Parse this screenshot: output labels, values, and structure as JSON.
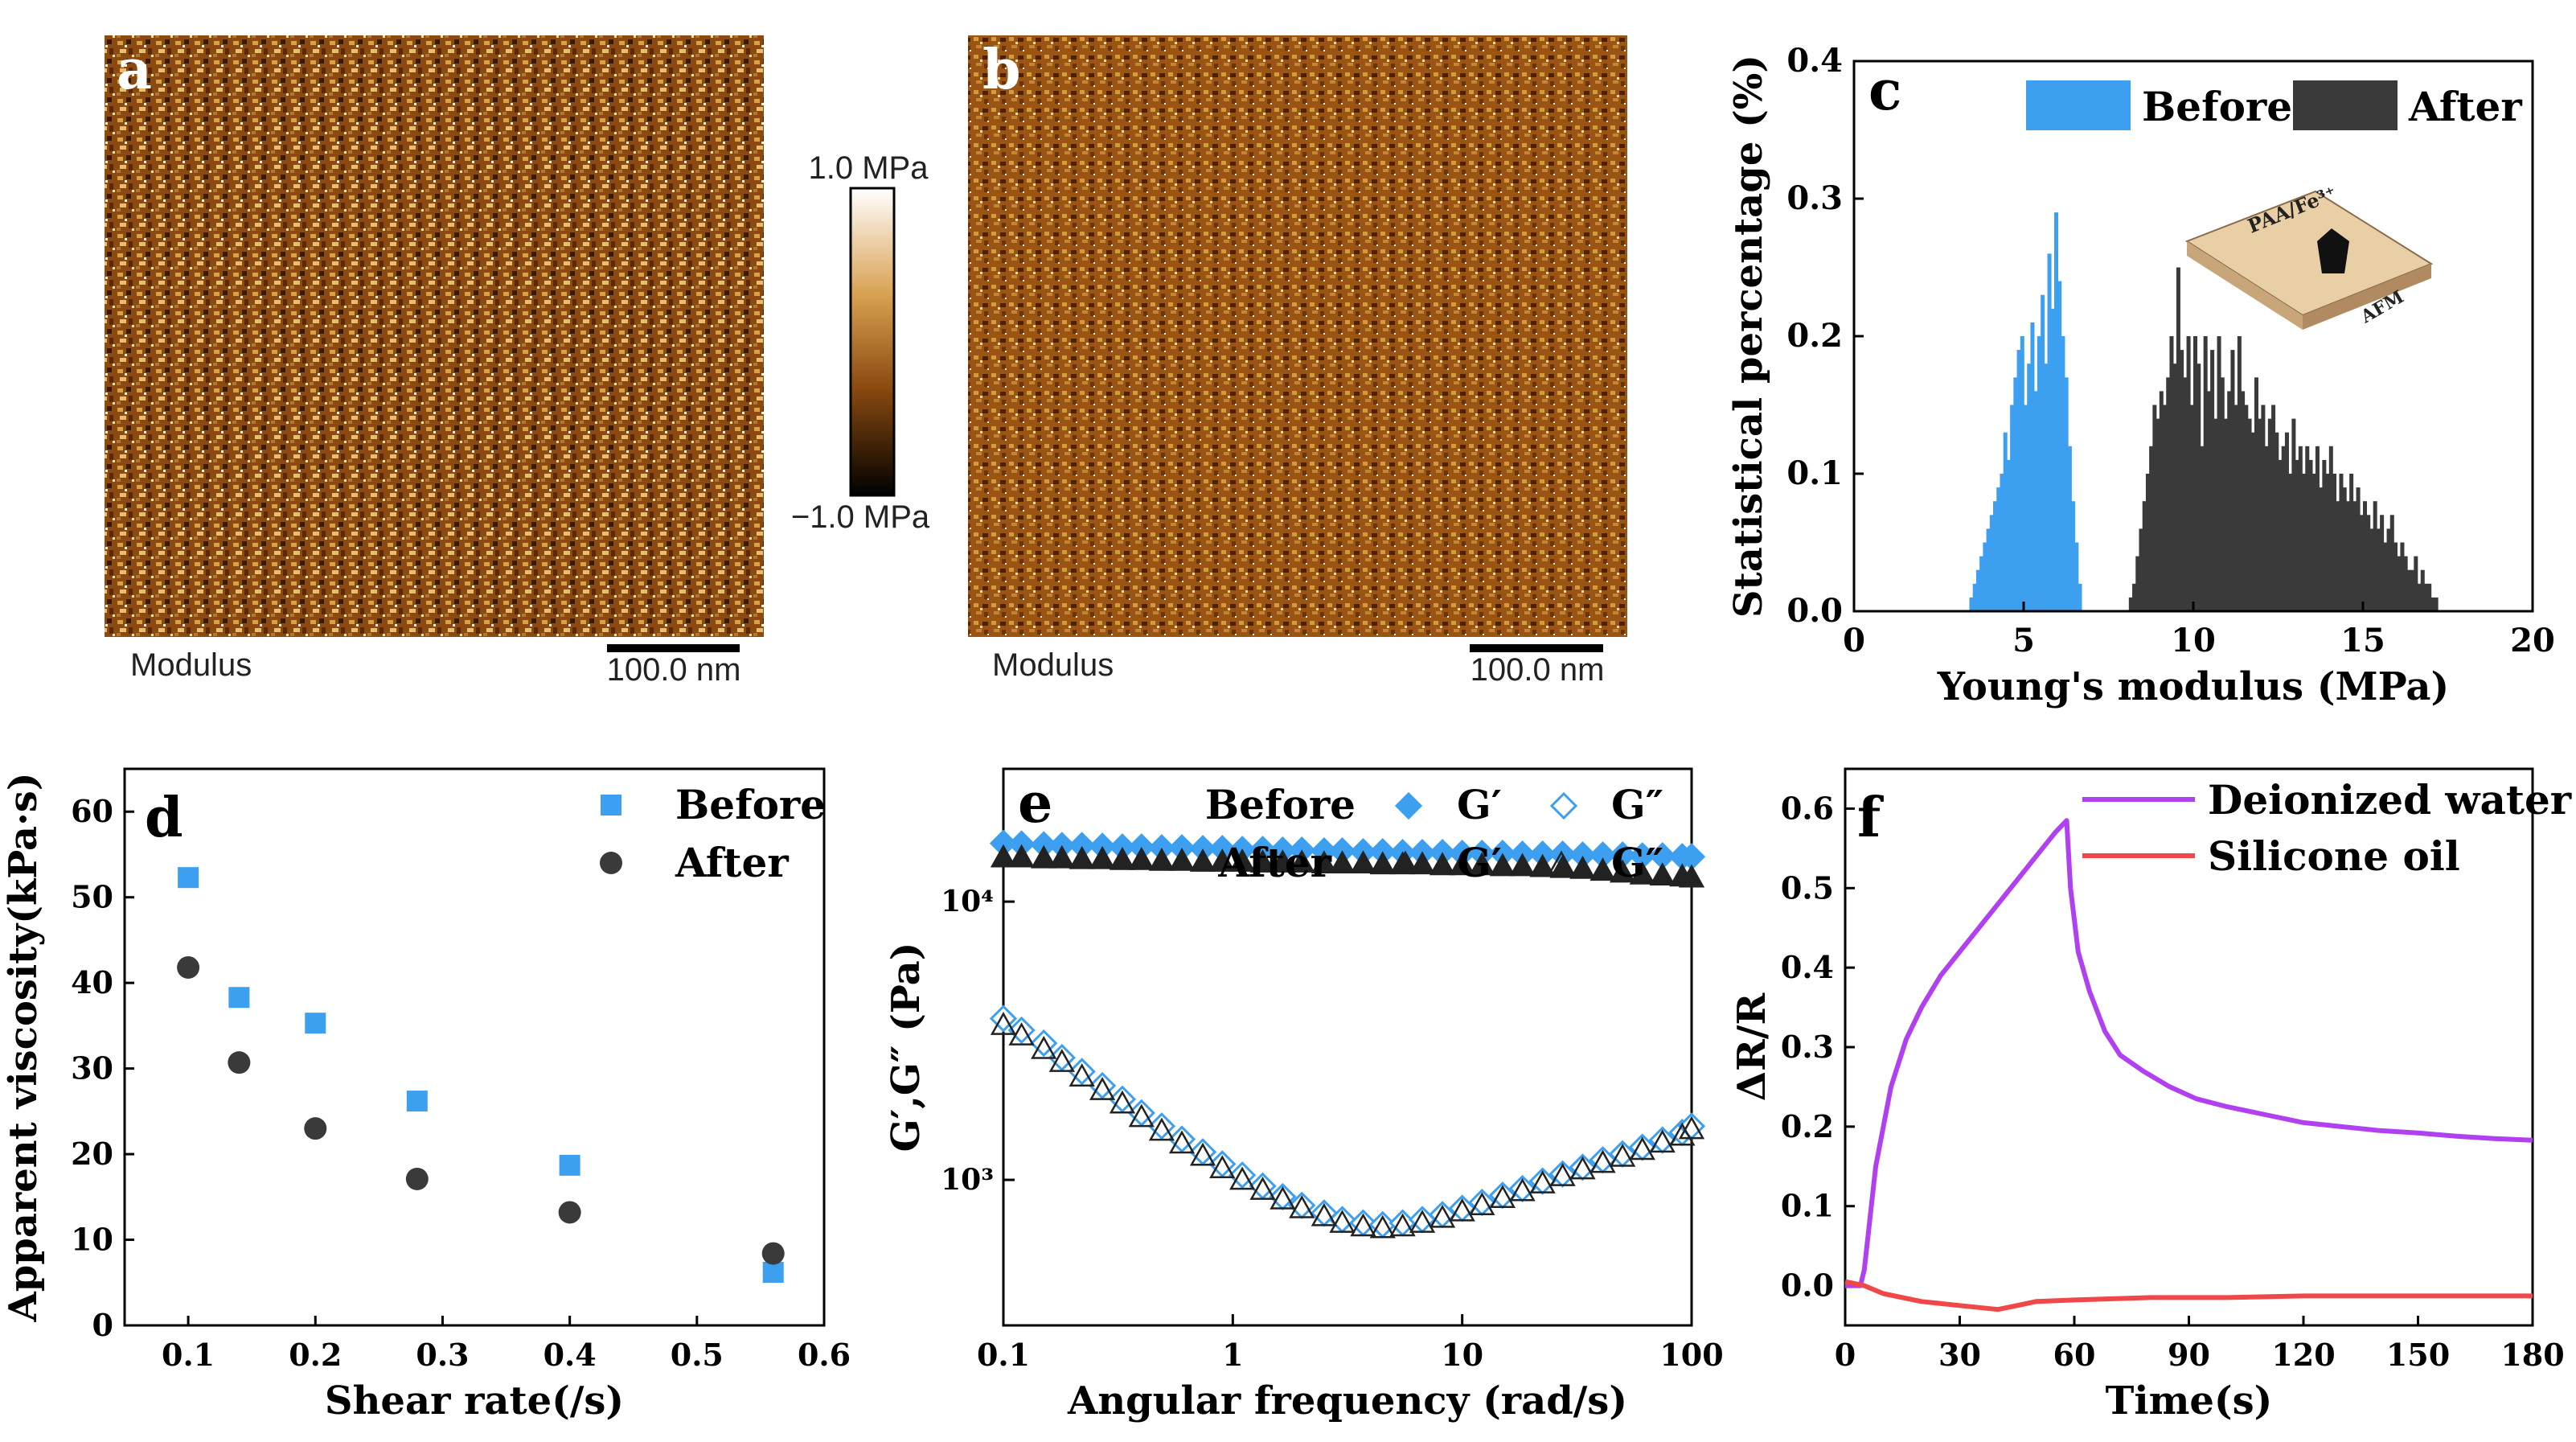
{
  "panels": {
    "a": {
      "letter": "a",
      "caption": "Modulus",
      "scalebar": "100.0 nm"
    },
    "b": {
      "letter": "b",
      "caption": "Modulus",
      "scalebar": "100.0 nm"
    },
    "colorbar": {
      "top_label": "1.0 MPa",
      "bottom_label": "−1.0 MPa"
    }
  },
  "inset": {
    "top_label": "PAA/Fe³⁺",
    "side_label": "AFM"
  },
  "colors": {
    "before": "#3d9ff0",
    "after": "#3a3a3a",
    "water": "#b040f0",
    "oil": "#f04848"
  },
  "chart_data": [
    {
      "id": "c",
      "type": "bar",
      "letter": "c",
      "xlabel": "Young's modulus (MPa)",
      "ylabel": "Statistical percentage (%)",
      "xlim": [
        0,
        20
      ],
      "ylim": [
        0,
        0.4
      ],
      "xticks": [
        "0",
        "5",
        "10",
        "15",
        "20"
      ],
      "yticks": [
        "0.0",
        "0.1",
        "0.2",
        "0.3",
        "0.4"
      ],
      "legend": [
        "Before",
        "After"
      ],
      "series": [
        {
          "name": "Before",
          "bin_start": 3.4,
          "bin_width": 0.1,
          "values": [
            0.01,
            0.02,
            0.03,
            0.04,
            0.05,
            0.06,
            0.07,
            0.08,
            0.09,
            0.1,
            0.13,
            0.11,
            0.15,
            0.17,
            0.19,
            0.2,
            0.15,
            0.18,
            0.21,
            0.16,
            0.2,
            0.23,
            0.18,
            0.26,
            0.22,
            0.29,
            0.24,
            0.2,
            0.17,
            0.12,
            0.08,
            0.05,
            0.02
          ]
        },
        {
          "name": "After",
          "bin_start": 8.1,
          "bin_width": 0.1,
          "values": [
            0.01,
            0.02,
            0.04,
            0.06,
            0.08,
            0.1,
            0.12,
            0.15,
            0.14,
            0.16,
            0.15,
            0.17,
            0.2,
            0.18,
            0.25,
            0.19,
            0.17,
            0.2,
            0.15,
            0.2,
            0.18,
            0.12,
            0.2,
            0.16,
            0.19,
            0.14,
            0.2,
            0.17,
            0.14,
            0.16,
            0.19,
            0.15,
            0.2,
            0.16,
            0.15,
            0.14,
            0.13,
            0.17,
            0.14,
            0.15,
            0.12,
            0.14,
            0.15,
            0.13,
            0.11,
            0.12,
            0.13,
            0.1,
            0.14,
            0.11,
            0.12,
            0.1,
            0.12,
            0.11,
            0.1,
            0.12,
            0.09,
            0.11,
            0.1,
            0.12,
            0.1,
            0.08,
            0.1,
            0.09,
            0.08,
            0.1,
            0.08,
            0.09,
            0.07,
            0.08,
            0.07,
            0.06,
            0.08,
            0.06,
            0.07,
            0.05,
            0.06,
            0.07,
            0.05,
            0.04,
            0.05,
            0.04,
            0.03,
            0.03,
            0.04,
            0.02,
            0.03,
            0.02,
            0.02,
            0.01,
            0.01
          ]
        }
      ]
    },
    {
      "id": "d",
      "type": "scatter",
      "letter": "d",
      "xlabel": "Shear rate(/s)",
      "ylabel": "Apparent viscosity(kPa·s)",
      "xlim": [
        0.05,
        0.6
      ],
      "ylim": [
        0,
        65
      ],
      "xticks": [
        "0.1",
        "0.2",
        "0.3",
        "0.4",
        "0.5",
        "0.6"
      ],
      "yticks": [
        "0",
        "10",
        "20",
        "30",
        "40",
        "50",
        "60"
      ],
      "series": [
        {
          "name": "Before",
          "marker": "square",
          "x": [
            0.1,
            0.14,
            0.2,
            0.28,
            0.4,
            0.56
          ],
          "y": [
            52.3,
            38.3,
            35.3,
            26.2,
            18.7,
            6.2
          ]
        },
        {
          "name": "After",
          "marker": "circle",
          "x": [
            0.1,
            0.14,
            0.2,
            0.28,
            0.4,
            0.56
          ],
          "y": [
            41.8,
            30.7,
            23.0,
            17.1,
            13.2,
            8.4
          ]
        }
      ]
    },
    {
      "id": "e",
      "type": "scatter",
      "letter": "e",
      "log": true,
      "xlabel": "Angular frequency (rad/s)",
      "ylabel": "G′,G″ (Pa)",
      "xlim": [
        0.1,
        100
      ],
      "ylim": [
        300,
        30000
      ],
      "xticks": [
        "0.1",
        "1",
        "10",
        "100"
      ],
      "yticks": [
        "10³",
        "10⁴"
      ],
      "legend": {
        "before": "Before",
        "after": "After",
        "gp": "G′",
        "gpp": "G″"
      },
      "series": [
        {
          "name": "Before G′",
          "marker": "diamond-filled",
          "x": [
            0.1,
            0.12,
            0.15,
            0.18,
            0.22,
            0.27,
            0.33,
            0.4,
            0.49,
            0.6,
            0.74,
            0.9,
            1.1,
            1.35,
            1.65,
            2.0,
            2.5,
            3.0,
            3.7,
            4.5,
            5.5,
            6.7,
            8.2,
            10,
            12.2,
            15,
            18.3,
            22.4,
            27.4,
            33.5,
            41,
            50,
            61,
            74.6,
            91,
            100
          ],
          "y": [
            16200,
            16100,
            16000,
            15900,
            15900,
            15800,
            15700,
            15700,
            15600,
            15600,
            15500,
            15500,
            15400,
            15400,
            15300,
            15300,
            15200,
            15200,
            15100,
            15100,
            15000,
            15000,
            15000,
            14900,
            14900,
            14900,
            14800,
            14800,
            14800,
            14700,
            14700,
            14700,
            14600,
            14600,
            14500,
            14500
          ]
        },
        {
          "name": "Before G″",
          "marker": "diamond-open",
          "x": [
            0.1,
            0.12,
            0.15,
            0.18,
            0.22,
            0.27,
            0.33,
            0.4,
            0.49,
            0.6,
            0.74,
            0.9,
            1.1,
            1.35,
            1.65,
            2.0,
            2.5,
            3.0,
            3.7,
            4.5,
            5.5,
            6.7,
            8.2,
            10,
            12.2,
            15,
            18.3,
            22.4,
            27.4,
            33.5,
            41,
            50,
            61,
            74.6,
            91,
            100
          ],
          "y": [
            3800,
            3450,
            3100,
            2750,
            2450,
            2180,
            1950,
            1740,
            1560,
            1400,
            1260,
            1140,
            1040,
            950,
            870,
            810,
            760,
            720,
            700,
            690,
            700,
            720,
            750,
            790,
            830,
            880,
            930,
            990,
            1050,
            1110,
            1180,
            1240,
            1310,
            1390,
            1480,
            1560
          ]
        },
        {
          "name": "After G′",
          "marker": "triangle-filled",
          "x": [
            0.1,
            0.12,
            0.15,
            0.18,
            0.22,
            0.27,
            0.33,
            0.4,
            0.49,
            0.6,
            0.74,
            0.9,
            1.1,
            1.35,
            1.65,
            2.0,
            2.5,
            3.0,
            3.7,
            4.5,
            5.5,
            6.7,
            8.2,
            10,
            12.2,
            15,
            18.3,
            22.4,
            27.4,
            33.5,
            41,
            50,
            61,
            74.6,
            91,
            100
          ],
          "y": [
            14400,
            14400,
            14300,
            14300,
            14200,
            14200,
            14100,
            14100,
            14000,
            14000,
            13900,
            13900,
            13900,
            13800,
            13800,
            13800,
            13700,
            13700,
            13700,
            13600,
            13600,
            13600,
            13500,
            13500,
            13500,
            13400,
            13400,
            13300,
            13200,
            13100,
            12900,
            12700,
            12500,
            12400,
            12300,
            12200
          ]
        },
        {
          "name": "After G″",
          "marker": "triangle-open",
          "x": [
            0.1,
            0.12,
            0.15,
            0.18,
            0.22,
            0.27,
            0.33,
            0.4,
            0.49,
            0.6,
            0.74,
            0.9,
            1.1,
            1.35,
            1.65,
            2.0,
            2.5,
            3.0,
            3.7,
            4.5,
            5.5,
            6.7,
            8.2,
            10,
            12.2,
            15,
            18.3,
            22.4,
            27.4,
            33.5,
            41,
            50,
            61,
            74.6,
            91,
            100
          ],
          "y": [
            3600,
            3300,
            2950,
            2650,
            2350,
            2100,
            1880,
            1680,
            1500,
            1350,
            1220,
            1100,
            1000,
            920,
            850,
            790,
            740,
            700,
            680,
            670,
            680,
            700,
            730,
            770,
            810,
            860,
            910,
            970,
            1030,
            1090,
            1150,
            1210,
            1280,
            1360,
            1440,
            1520
          ]
        }
      ]
    },
    {
      "id": "f",
      "type": "line",
      "letter": "f",
      "xlabel": "Time(s)",
      "ylabel": "ΔR/R",
      "xlim": [
        0,
        180
      ],
      "ylim": [
        -0.05,
        0.65
      ],
      "xticks": [
        "0",
        "30",
        "60",
        "90",
        "120",
        "150",
        "180"
      ],
      "yticks": [
        "0.0",
        "0.1",
        "0.2",
        "0.3",
        "0.4",
        "0.5",
        "0.6"
      ],
      "series": [
        {
          "name": "Deionized water",
          "x": [
            0,
            4,
            5,
            8,
            12,
            16,
            20,
            25,
            30,
            35,
            40,
            45,
            50,
            55,
            58,
            59,
            61,
            64,
            68,
            72,
            78,
            85,
            92,
            100,
            110,
            120,
            130,
            140,
            150,
            160,
            170,
            180
          ],
          "y": [
            0,
            0,
            0.02,
            0.15,
            0.25,
            0.31,
            0.35,
            0.39,
            0.42,
            0.45,
            0.48,
            0.51,
            0.54,
            0.57,
            0.585,
            0.5,
            0.42,
            0.37,
            0.32,
            0.29,
            0.27,
            0.25,
            0.235,
            0.225,
            0.215,
            0.205,
            0.2,
            0.195,
            0.192,
            0.188,
            0.185,
            0.183
          ]
        },
        {
          "name": "Silicone oil",
          "x": [
            0,
            5,
            10,
            20,
            30,
            40,
            45,
            50,
            60,
            80,
            100,
            120,
            140,
            160,
            180
          ],
          "y": [
            0.005,
            0.0,
            -0.01,
            -0.02,
            -0.025,
            -0.03,
            -0.025,
            -0.02,
            -0.018,
            -0.015,
            -0.015,
            -0.013,
            -0.013,
            -0.013,
            -0.013
          ]
        }
      ]
    }
  ]
}
